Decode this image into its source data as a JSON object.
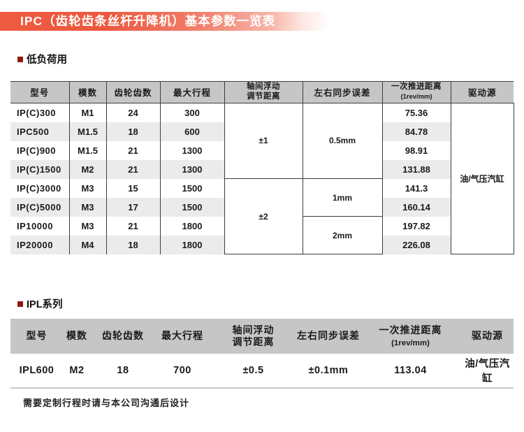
{
  "banner": {
    "title": "IPC（齿轮齿条丝杆升降机）基本参数一览表"
  },
  "sections": {
    "low_load": {
      "title": "低负荷用"
    },
    "ipl": {
      "title": "IPL系列"
    }
  },
  "table1": {
    "headers": [
      "型号",
      "模数",
      "齿轮齿数",
      "最大行程",
      "轴间浮动\n调节距离",
      "左右同步误差",
      "一次推进距离\n(1rev/mm)",
      "驱动源"
    ],
    "rows": [
      {
        "model": "IP(C)300",
        "module": "M1",
        "teeth": "24",
        "stroke": "300",
        "feed": "75.36"
      },
      {
        "model": "IPC500",
        "module": "M1.5",
        "teeth": "18",
        "stroke": "600",
        "feed": "84.78"
      },
      {
        "model": "IP(C)900",
        "module": "M1.5",
        "teeth": "21",
        "stroke": "1300",
        "feed": "98.91"
      },
      {
        "model": "IP(C)1500",
        "module": "M2",
        "teeth": "21",
        "stroke": "1300",
        "feed": "131.88"
      },
      {
        "model": "IP(C)3000",
        "module": "M3",
        "teeth": "15",
        "stroke": "1500",
        "feed": "141.3"
      },
      {
        "model": "IP(C)5000",
        "module": "M3",
        "teeth": "17",
        "stroke": "1500",
        "feed": "160.14"
      },
      {
        "model": "IP10000",
        "module": "M3",
        "teeth": "21",
        "stroke": "1800",
        "feed": "197.82"
      },
      {
        "model": "IP20000",
        "module": "M4",
        "teeth": "18",
        "stroke": "1800",
        "feed": "226.08"
      }
    ],
    "merged_float_adjust": [
      {
        "label": "±1",
        "start": 0,
        "rows": 4
      },
      {
        "label": "±2",
        "start": 4,
        "rows": 4
      }
    ],
    "merged_sync_error": [
      {
        "label": "0.5mm",
        "start": 0,
        "rows": 4
      },
      {
        "label": "1mm",
        "start": 4,
        "rows": 2
      },
      {
        "label": "2mm",
        "start": 6,
        "rows": 2
      }
    ],
    "merged_drive": [
      {
        "label": "油/气压汽缸",
        "start": 0,
        "rows": 8
      }
    ]
  },
  "table2": {
    "headers": [
      "型号",
      "模数",
      "齿轮齿数",
      "最大行程",
      "轴间浮动\n调节距离",
      "左右同步误差",
      "一次推进距离\n(1rev/mm)",
      "驱动源"
    ],
    "row": {
      "model": "IPL600",
      "module": "M2",
      "teeth": "18",
      "stroke": "700",
      "float_adjust": "±0.5",
      "sync_error": "±0.1mm",
      "feed": "113.04",
      "drive": "油/气压汽缸"
    }
  },
  "footnote": "需要定制行程时请与本公司沟通后设计",
  "colors": {
    "banner_red": "#ee5a41",
    "header_gray": "#c6c6c6",
    "stripe_gray": "#ebebeb",
    "bullet_red": "#8e1b12",
    "border_dark": "#3c3c3c"
  }
}
